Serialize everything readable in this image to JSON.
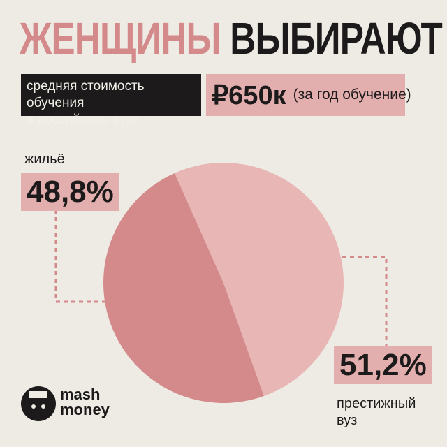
{
  "chart_data": {
    "type": "pie",
    "title": [
      "ЖЕНЩИНЫ",
      "ВЫБИРАЮТ"
    ],
    "subtitle": [
      "средняя стоимость обучения",
      "в российском вузе"
    ],
    "price": "₽650к",
    "price_note": "(за год обучение)",
    "categories": [
      "жильё",
      "престижный вуз"
    ],
    "values": [
      48.8,
      51.2
    ],
    "value_labels": [
      "48,8%",
      "51,2%"
    ],
    "colors": [
      "#d4898b",
      "#e7b6b5"
    ],
    "brand": [
      "mash",
      "money"
    ]
  }
}
